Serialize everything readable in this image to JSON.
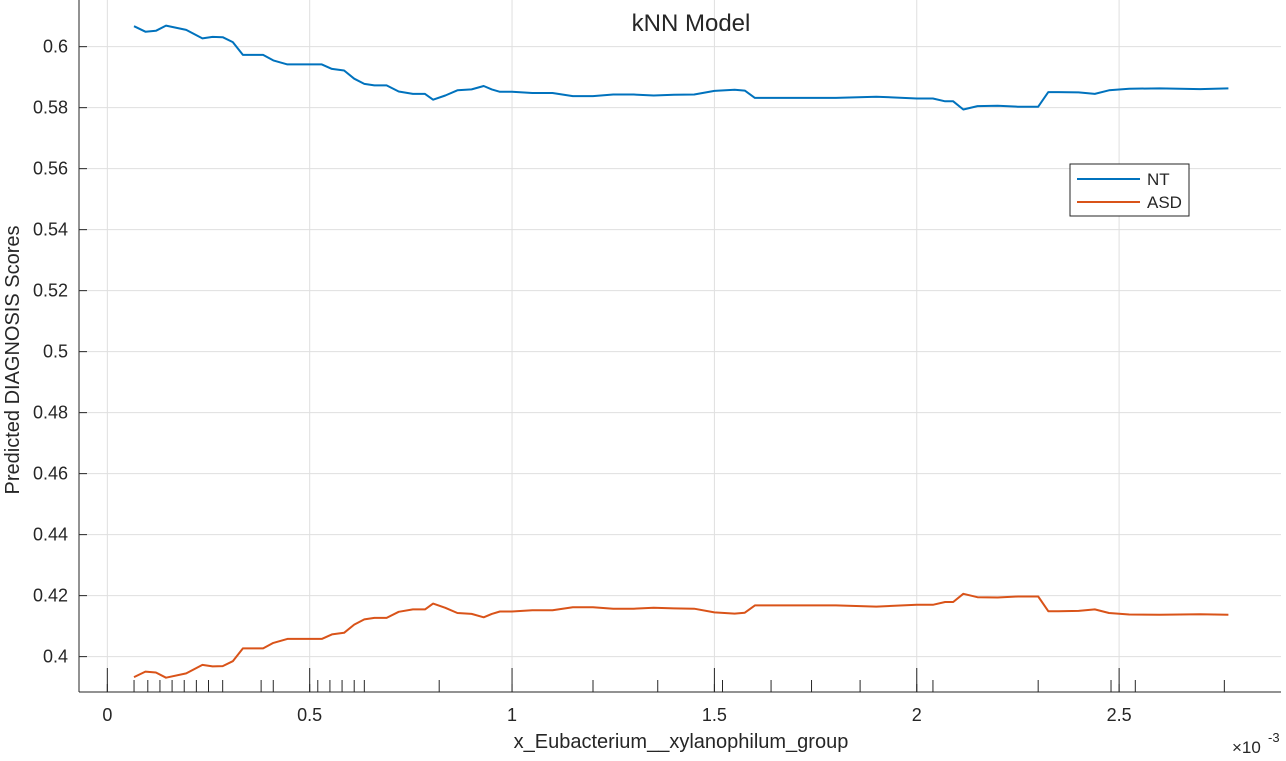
{
  "chart_data": {
    "type": "line",
    "title": "kNN Model",
    "xlabel": "x_Eubacterium__xylanophilum_group",
    "ylabel": "Predicted DIAGNOSIS Scores",
    "x_exponent_label": "×10",
    "x_exponent_power": "-3",
    "xlim": [
      -0.07,
      2.9
    ],
    "ylim": [
      0.3884,
      0.6153
    ],
    "xticks": [
      0,
      0.5,
      1,
      1.5,
      2,
      2.5
    ],
    "xtick_labels": [
      "0",
      "0.5",
      "1",
      "1.5",
      "2",
      "2.5"
    ],
    "yticks": [
      0.4,
      0.42,
      0.44,
      0.46,
      0.48,
      0.5,
      0.52,
      0.54,
      0.56,
      0.58,
      0.6
    ],
    "ytick_labels": [
      "0.4",
      "0.42",
      "0.44",
      "0.46",
      "0.48",
      "0.5",
      "0.52",
      "0.54",
      "0.56",
      "0.58",
      "0.6"
    ],
    "grid": true,
    "legend_position": "upper-right",
    "series": [
      {
        "name": "NT",
        "color": "#0072BD",
        "x": [
          0.066,
          0.094,
          0.12,
          0.145,
          0.195,
          0.235,
          0.26,
          0.285,
          0.31,
          0.335,
          0.385,
          0.41,
          0.445,
          0.53,
          0.555,
          0.585,
          0.61,
          0.635,
          0.66,
          0.69,
          0.72,
          0.755,
          0.785,
          0.805,
          0.835,
          0.865,
          0.9,
          0.93,
          0.95,
          0.97,
          1.0,
          1.05,
          1.1,
          1.15,
          1.2,
          1.25,
          1.3,
          1.35,
          1.4,
          1.45,
          1.5,
          1.55,
          1.575,
          1.6,
          1.63,
          1.7,
          1.8,
          1.9,
          2.0,
          2.04,
          2.07,
          2.09,
          2.115,
          2.15,
          2.2,
          2.25,
          2.3,
          2.325,
          2.35,
          2.4,
          2.44,
          2.475,
          2.525,
          2.6,
          2.7,
          2.77
        ],
        "values": [
          0.6067,
          0.6049,
          0.6052,
          0.6069,
          0.6055,
          0.6027,
          0.6032,
          0.6031,
          0.6015,
          0.5973,
          0.5973,
          0.5955,
          0.5942,
          0.5942,
          0.5927,
          0.5922,
          0.5895,
          0.5878,
          0.5873,
          0.5873,
          0.5853,
          0.5845,
          0.5845,
          0.5826,
          0.584,
          0.5857,
          0.586,
          0.5871,
          0.586,
          0.5852,
          0.5852,
          0.5848,
          0.5848,
          0.5838,
          0.5838,
          0.5843,
          0.5843,
          0.584,
          0.5842,
          0.5843,
          0.5855,
          0.5859,
          0.5856,
          0.5832,
          0.5832,
          0.5832,
          0.5832,
          0.5836,
          0.583,
          0.583,
          0.5821,
          0.5821,
          0.5794,
          0.5805,
          0.5806,
          0.5803,
          0.5803,
          0.5851,
          0.5851,
          0.585,
          0.5845,
          0.5857,
          0.5862,
          0.5863,
          0.5861,
          0.5863
        ]
      },
      {
        "name": "ASD",
        "color": "#D95319",
        "x": [
          0.066,
          0.094,
          0.12,
          0.145,
          0.195,
          0.235,
          0.26,
          0.285,
          0.31,
          0.335,
          0.385,
          0.41,
          0.445,
          0.53,
          0.555,
          0.585,
          0.61,
          0.635,
          0.66,
          0.69,
          0.72,
          0.755,
          0.785,
          0.805,
          0.835,
          0.865,
          0.9,
          0.93,
          0.95,
          0.97,
          1.0,
          1.05,
          1.1,
          1.15,
          1.2,
          1.25,
          1.3,
          1.35,
          1.4,
          1.45,
          1.5,
          1.55,
          1.575,
          1.6,
          1.63,
          1.7,
          1.8,
          1.9,
          2.0,
          2.04,
          2.07,
          2.09,
          2.115,
          2.15,
          2.2,
          2.25,
          2.3,
          2.325,
          2.35,
          2.4,
          2.44,
          2.475,
          2.525,
          2.6,
          2.7,
          2.77
        ],
        "values": [
          0.3933,
          0.3951,
          0.3948,
          0.3931,
          0.3945,
          0.3973,
          0.3968,
          0.3969,
          0.3985,
          0.4027,
          0.4027,
          0.4045,
          0.4058,
          0.4058,
          0.4073,
          0.4078,
          0.4105,
          0.4122,
          0.4127,
          0.4127,
          0.4147,
          0.4155,
          0.4155,
          0.4174,
          0.416,
          0.4143,
          0.414,
          0.4129,
          0.414,
          0.4148,
          0.4148,
          0.4152,
          0.4152,
          0.4162,
          0.4162,
          0.4157,
          0.4157,
          0.416,
          0.4158,
          0.4157,
          0.4145,
          0.4141,
          0.4144,
          0.4168,
          0.4168,
          0.4168,
          0.4168,
          0.4164,
          0.417,
          0.417,
          0.4179,
          0.4179,
          0.4206,
          0.4195,
          0.4194,
          0.4197,
          0.4197,
          0.4149,
          0.4149,
          0.415,
          0.4155,
          0.4143,
          0.4138,
          0.4137,
          0.4139,
          0.4137
        ]
      }
    ],
    "rug_x": [
      0.0,
      0.066,
      0.1,
      0.13,
      0.16,
      0.19,
      0.22,
      0.25,
      0.285,
      0.38,
      0.41,
      0.5,
      0.52,
      0.55,
      0.58,
      0.61,
      0.635,
      0.82,
      1.0,
      1.2,
      1.36,
      1.5,
      1.52,
      1.64,
      1.74,
      1.86,
      2.0,
      2.04,
      2.3,
      2.48,
      2.5,
      2.54,
      2.76
    ]
  }
}
